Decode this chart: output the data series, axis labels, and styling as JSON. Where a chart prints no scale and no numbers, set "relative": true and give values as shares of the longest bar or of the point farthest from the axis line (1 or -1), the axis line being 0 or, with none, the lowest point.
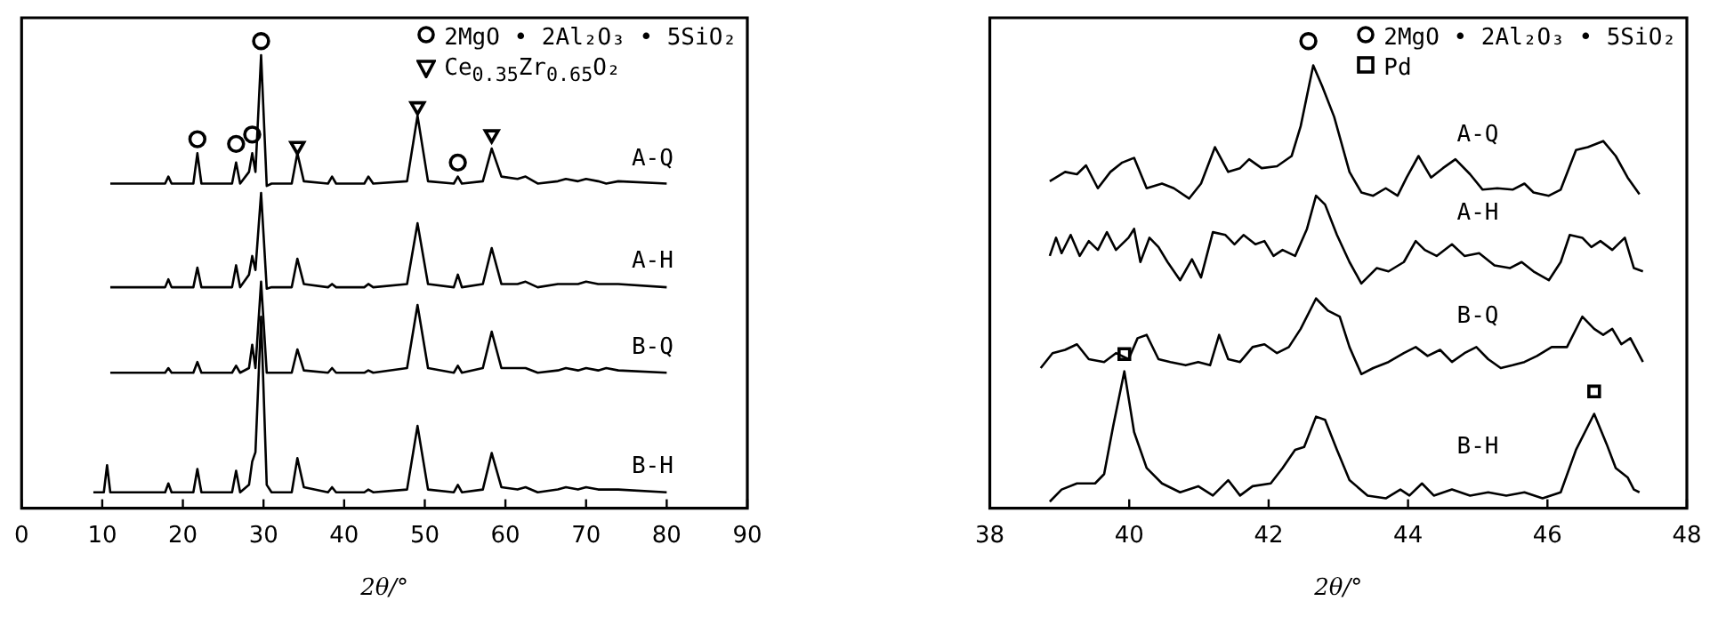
{
  "chart_data": [
    {
      "type": "line",
      "xlabel": "2θ/°",
      "relative": true,
      "legend": "top right",
      "xlim": [
        0,
        90
      ],
      "xticks": [
        0,
        10,
        20,
        30,
        40,
        50,
        60,
        70,
        80,
        90
      ],
      "x": [
        8.9,
        10.2,
        10.6,
        11.0,
        17.8,
        18.2,
        18.6,
        21.3,
        21.8,
        22.3,
        26.1,
        26.6,
        27.1,
        28.2,
        28.6,
        29.0,
        29.7,
        30.4,
        31.0,
        33.5,
        34.2,
        35.0,
        38.0,
        38.5,
        39.0,
        42.5,
        43.0,
        43.6,
        47.8,
        49.1,
        50.4,
        53.6,
        54.1,
        54.6,
        57.2,
        58.3,
        59.5,
        61.5,
        62.5,
        64.0,
        66.5,
        67.5,
        69.0,
        70.0,
        71.5,
        72.5,
        74.0,
        80.0
      ],
      "series": [
        {
          "name": "A-Q",
          "color": "#000000",
          "values": [
            null,
            null,
            null,
            0.695,
            0.695,
            0.71,
            0.695,
            0.695,
            0.76,
            0.695,
            0.695,
            0.74,
            0.695,
            0.72,
            0.76,
            0.72,
            0.97,
            0.69,
            0.695,
            0.695,
            0.76,
            0.7,
            0.695,
            0.71,
            0.695,
            0.695,
            0.71,
            0.695,
            0.7,
            0.84,
            0.7,
            0.695,
            0.71,
            0.695,
            0.7,
            0.77,
            0.71,
            0.705,
            0.71,
            0.695,
            0.7,
            0.705,
            0.7,
            0.705,
            0.7,
            0.695,
            0.7,
            0.695
          ]
        },
        {
          "name": "A-H",
          "color": "#000000",
          "values": [
            null,
            null,
            null,
            0.473,
            0.473,
            0.49,
            0.473,
            0.473,
            0.515,
            0.473,
            0.473,
            0.52,
            0.473,
            0.5,
            0.54,
            0.51,
            0.675,
            0.47,
            0.473,
            0.473,
            0.534,
            0.48,
            0.473,
            0.48,
            0.473,
            0.473,
            0.48,
            0.473,
            0.48,
            0.61,
            0.48,
            0.473,
            0.5,
            0.473,
            0.48,
            0.557,
            0.48,
            0.48,
            0.485,
            0.473,
            0.48,
            0.48,
            0.48,
            0.485,
            0.48,
            0.48,
            0.48,
            0.473
          ]
        },
        {
          "name": "B-Q",
          "color": "#000000",
          "values": [
            null,
            null,
            null,
            0.29,
            0.29,
            0.3,
            0.29,
            0.29,
            0.313,
            0.29,
            0.29,
            0.305,
            0.29,
            0.3,
            0.35,
            0.3,
            0.485,
            0.29,
            0.29,
            0.29,
            0.34,
            0.295,
            0.29,
            0.3,
            0.29,
            0.29,
            0.295,
            0.29,
            0.3,
            0.435,
            0.3,
            0.29,
            0.305,
            0.29,
            0.3,
            0.378,
            0.3,
            0.3,
            0.3,
            0.29,
            0.295,
            0.3,
            0.295,
            0.3,
            0.295,
            0.3,
            0.295,
            0.29
          ]
        },
        {
          "name": "B-H",
          "color": "#000000",
          "values": [
            0.034,
            0.034,
            0.092,
            0.034,
            0.034,
            0.053,
            0.034,
            0.034,
            0.084,
            0.034,
            0.034,
            0.08,
            0.034,
            0.05,
            0.1,
            0.12,
            0.41,
            0.05,
            0.034,
            0.034,
            0.107,
            0.045,
            0.034,
            0.045,
            0.034,
            0.034,
            0.04,
            0.034,
            0.04,
            0.176,
            0.04,
            0.034,
            0.05,
            0.034,
            0.04,
            0.118,
            0.045,
            0.04,
            0.045,
            0.034,
            0.04,
            0.045,
            0.04,
            0.045,
            0.04,
            0.04,
            0.04,
            0.034
          ]
        },
        {
          "name": "2MgO • 2Al₂O₃ • 5SiO₂",
          "type": "scatter",
          "marker": "circle",
          "color": "#000000",
          "x": [
            21.8,
            26.6,
            28.6,
            29.7,
            54.1
          ],
          "values": [
            0.79,
            0.78,
            0.8,
            1.0,
            0.74
          ]
        },
        {
          "name": "Ce$_{0.35}$Zr$_{0.65}$O₂",
          "type": "scatter",
          "marker": "triangle",
          "color": "#000000",
          "x": [
            34.2,
            49.1,
            58.3
          ],
          "values": [
            0.775,
            0.86,
            0.8
          ]
        }
      ]
    },
    {
      "type": "line",
      "xlabel": "2θ/°",
      "relative": true,
      "legend": "top right",
      "xlim": [
        38,
        48
      ],
      "xticks": [
        38,
        40,
        42,
        44,
        46,
        48
      ],
      "series": [
        {
          "name": "A-Q",
          "color": "#000000",
          "x": [
            38.86,
            39.08,
            39.25,
            39.38,
            39.55,
            39.73,
            39.9,
            40.07,
            40.25,
            40.47,
            40.64,
            40.86,
            41.03,
            41.23,
            41.42,
            41.59,
            41.72,
            41.9,
            42.12,
            42.33,
            42.46,
            42.64,
            42.77,
            42.94,
            43.16,
            43.33,
            43.5,
            43.68,
            43.85,
            43.98,
            44.15,
            44.33,
            44.5,
            44.68,
            44.89,
            45.07,
            45.28,
            45.5,
            45.67,
            45.8,
            46.02,
            46.19,
            46.41,
            46.58,
            46.8,
            46.98,
            47.15,
            47.32
          ],
          "values": [
            0.7,
            0.72,
            0.715,
            0.734,
            0.685,
            0.72,
            0.74,
            0.75,
            0.685,
            0.695,
            0.685,
            0.663,
            0.695,
            0.773,
            0.72,
            0.728,
            0.747,
            0.728,
            0.732,
            0.754,
            0.818,
            0.948,
            0.903,
            0.838,
            0.72,
            0.676,
            0.669,
            0.685,
            0.669,
            0.708,
            0.754,
            0.708,
            0.728,
            0.747,
            0.715,
            0.682,
            0.685,
            0.682,
            0.695,
            0.676,
            0.669,
            0.682,
            0.767,
            0.773,
            0.786,
            0.754,
            0.708,
            0.672
          ]
        },
        {
          "name": "A-H",
          "color": "#000000",
          "x": [
            38.86,
            38.95,
            39.03,
            39.16,
            39.29,
            39.42,
            39.55,
            39.68,
            39.81,
            39.99,
            40.07,
            40.16,
            40.29,
            40.42,
            40.55,
            40.73,
            40.9,
            41.03,
            41.2,
            41.38,
            41.51,
            41.64,
            41.81,
            41.94,
            42.07,
            42.2,
            42.38,
            42.55,
            42.68,
            42.81,
            42.98,
            43.16,
            43.33,
            43.55,
            43.72,
            43.94,
            44.11,
            44.24,
            44.41,
            44.63,
            44.81,
            45.02,
            45.24,
            45.46,
            45.63,
            45.8,
            46.02,
            46.19,
            46.32,
            46.5,
            46.63,
            46.76,
            46.93,
            47.11,
            47.24,
            47.37
          ],
          "values": [
            0.54,
            0.579,
            0.546,
            0.585,
            0.54,
            0.572,
            0.553,
            0.591,
            0.553,
            0.579,
            0.598,
            0.527,
            0.579,
            0.559,
            0.527,
            0.488,
            0.533,
            0.494,
            0.591,
            0.585,
            0.565,
            0.585,
            0.565,
            0.572,
            0.54,
            0.553,
            0.54,
            0.598,
            0.669,
            0.65,
            0.585,
            0.527,
            0.481,
            0.514,
            0.507,
            0.527,
            0.572,
            0.553,
            0.54,
            0.565,
            0.54,
            0.546,
            0.52,
            0.514,
            0.527,
            0.507,
            0.488,
            0.527,
            0.585,
            0.579,
            0.559,
            0.572,
            0.553,
            0.579,
            0.514,
            0.507
          ]
        },
        {
          "name": "B-Q",
          "color": "#000000",
          "x": [
            38.73,
            38.9,
            39.08,
            39.25,
            39.42,
            39.64,
            39.81,
            39.99,
            40.12,
            40.25,
            40.42,
            40.59,
            40.81,
            40.99,
            41.16,
            41.29,
            41.42,
            41.59,
            41.77,
            41.94,
            42.12,
            42.29,
            42.46,
            42.68,
            42.85,
            43.02,
            43.16,
            43.33,
            43.5,
            43.72,
            43.94,
            44.11,
            44.28,
            44.46,
            44.63,
            44.81,
            44.98,
            45.15,
            45.33,
            45.5,
            45.67,
            45.85,
            46.06,
            46.28,
            46.5,
            46.67,
            46.8,
            46.93,
            47.06,
            47.19,
            47.37
          ],
          "values": [
            0.3,
            0.332,
            0.339,
            0.351,
            0.319,
            0.313,
            0.332,
            0.319,
            0.364,
            0.371,
            0.319,
            0.313,
            0.306,
            0.313,
            0.306,
            0.371,
            0.319,
            0.313,
            0.345,
            0.351,
            0.332,
            0.345,
            0.384,
            0.449,
            0.423,
            0.41,
            0.345,
            0.287,
            0.3,
            0.313,
            0.332,
            0.345,
            0.326,
            0.339,
            0.313,
            0.332,
            0.345,
            0.319,
            0.3,
            0.306,
            0.313,
            0.326,
            0.345,
            0.345,
            0.41,
            0.384,
            0.371,
            0.384,
            0.351,
            0.364,
            0.313
          ]
        },
        {
          "name": "B-H",
          "color": "#000000",
          "x": [
            38.86,
            39.03,
            39.25,
            39.51,
            39.64,
            39.77,
            39.93,
            40.07,
            40.25,
            40.47,
            40.73,
            40.99,
            41.2,
            41.42,
            41.59,
            41.77,
            42.03,
            42.2,
            42.38,
            42.51,
            42.68,
            42.81,
            42.98,
            43.16,
            43.42,
            43.68,
            43.89,
            44.02,
            44.2,
            44.37,
            44.63,
            44.89,
            45.15,
            45.41,
            45.67,
            45.93,
            46.19,
            46.41,
            46.67,
            46.85,
            46.98,
            47.15,
            47.24,
            47.32
          ],
          "values": [
            0.014,
            0.04,
            0.053,
            0.053,
            0.073,
            0.176,
            0.293,
            0.163,
            0.086,
            0.053,
            0.034,
            0.047,
            0.027,
            0.06,
            0.027,
            0.047,
            0.053,
            0.086,
            0.125,
            0.131,
            0.196,
            0.189,
            0.125,
            0.06,
            0.027,
            0.021,
            0.04,
            0.027,
            0.053,
            0.027,
            0.04,
            0.027,
            0.034,
            0.027,
            0.034,
            0.021,
            0.034,
            0.125,
            0.202,
            0.137,
            0.086,
            0.066,
            0.04,
            0.034
          ]
        },
        {
          "name": "2MgO • 2Al₂O₃ • 5SiO₂",
          "type": "scatter",
          "marker": "circle",
          "color": "#000000",
          "x": [
            42.57
          ],
          "values": [
            1.0
          ]
        },
        {
          "name": "Pd",
          "type": "scatter",
          "marker": "square",
          "color": "#000000",
          "x": [
            39.93,
            46.67
          ],
          "values": [
            0.33,
            0.25
          ]
        }
      ]
    }
  ]
}
